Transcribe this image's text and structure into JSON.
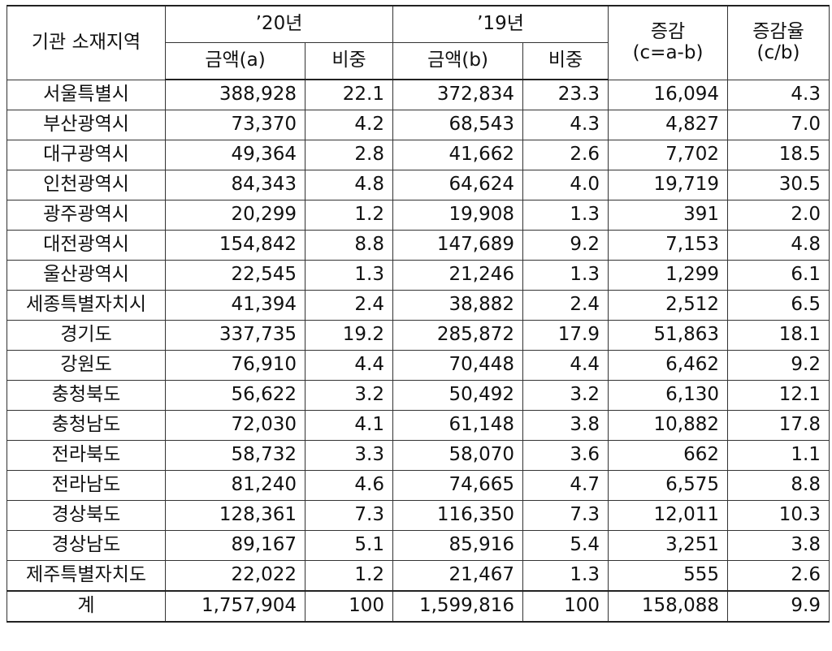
{
  "table": {
    "header": {
      "region": "기관 소재지역",
      "year20": "’20년",
      "year19": "’19년",
      "change": [
        "증감",
        "(c=a-b)"
      ],
      "rate": [
        "증감율",
        "(c/b)"
      ],
      "amount_a": "금액(a)",
      "share_a": "비중",
      "amount_b": "금액(b)",
      "share_b": "비중"
    },
    "rows": [
      [
        "서울특별시",
        "388,928",
        "22.1",
        "372,834",
        "23.3",
        "16,094",
        "4.3"
      ],
      [
        "부산광역시",
        "73,370",
        "4.2",
        "68,543",
        "4.3",
        "4,827",
        "7.0"
      ],
      [
        "대구광역시",
        "49,364",
        "2.8",
        "41,662",
        "2.6",
        "7,702",
        "18.5"
      ],
      [
        "인천광역시",
        "84,343",
        "4.8",
        "64,624",
        "4.0",
        "19,719",
        "30.5"
      ],
      [
        "광주광역시",
        "20,299",
        "1.2",
        "19,908",
        "1.3",
        "391",
        "2.0"
      ],
      [
        "대전광역시",
        "154,842",
        "8.8",
        "147,689",
        "9.2",
        "7,153",
        "4.8"
      ],
      [
        "울산광역시",
        "22,545",
        "1.3",
        "21,246",
        "1.3",
        "1,299",
        "6.1"
      ],
      [
        "세종특별자치시",
        "41,394",
        "2.4",
        "38,882",
        "2.4",
        "2,512",
        "6.5"
      ],
      [
        "경기도",
        "337,735",
        "19.2",
        "285,872",
        "17.9",
        "51,863",
        "18.1"
      ],
      [
        "강원도",
        "76,910",
        "4.4",
        "70,448",
        "4.4",
        "6,462",
        "9.2"
      ],
      [
        "충청북도",
        "56,622",
        "3.2",
        "50,492",
        "3.2",
        "6,130",
        "12.1"
      ],
      [
        "충청남도",
        "72,030",
        "4.1",
        "61,148",
        "3.8",
        "10,882",
        "17.8"
      ],
      [
        "전라북도",
        "58,732",
        "3.3",
        "58,070",
        "3.6",
        "662",
        "1.1"
      ],
      [
        "전라남도",
        "81,240",
        "4.6",
        "74,665",
        "4.7",
        "6,575",
        "8.8"
      ],
      [
        "경상북도",
        "128,361",
        "7.3",
        "116,350",
        "7.3",
        "12,011",
        "10.3"
      ],
      [
        "경상남도",
        "89,167",
        "5.1",
        "85,916",
        "5.4",
        "3,251",
        "3.8"
      ],
      [
        "제주특별자치도",
        "22,022",
        "1.2",
        "21,467",
        "1.3",
        "555",
        "2.6"
      ],
      [
        "계",
        "1,757,904",
        "100",
        "1,599,816",
        "100",
        "158,088",
        "9.9"
      ]
    ]
  }
}
